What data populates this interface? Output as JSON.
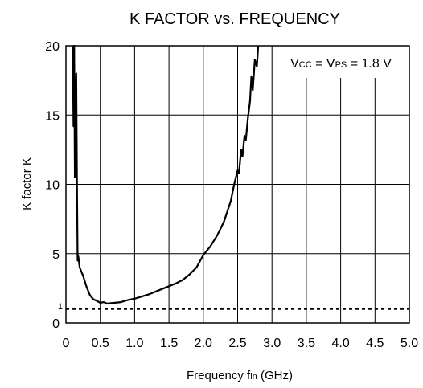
{
  "chart_data": {
    "type": "line",
    "title": "K FACTOR vs. FREQUENCY",
    "xlabel_main": "Frequency  f",
    "xlabel_sub": "in",
    "xlabel_unit": " (GHz)",
    "ylabel": "K factor  K",
    "xlim": [
      0,
      5.0
    ],
    "ylim": [
      0,
      20
    ],
    "x_ticks": [
      {
        "value": 0,
        "label": "0"
      },
      {
        "value": 0.5,
        "label": "0.5"
      },
      {
        "value": 1.0,
        "label": "1.0"
      },
      {
        "value": 1.5,
        "label": "1.5"
      },
      {
        "value": 2.0,
        "label": "2.0"
      },
      {
        "value": 2.5,
        "label": "2.5"
      },
      {
        "value": 3.0,
        "label": "3.0"
      },
      {
        "value": 3.5,
        "label": "3.5"
      },
      {
        "value": 4.0,
        "label": "4.0"
      },
      {
        "value": 4.5,
        "label": "4.5"
      },
      {
        "value": 5.0,
        "label": "5.0"
      }
    ],
    "y_ticks": [
      {
        "value": 0,
        "label": "0"
      },
      {
        "value": 1,
        "label": "1"
      },
      {
        "value": 5,
        "label": "5"
      },
      {
        "value": 10,
        "label": "10"
      },
      {
        "value": 15,
        "label": "15"
      },
      {
        "value": 20,
        "label": "20"
      }
    ],
    "grid": true,
    "reference_line": {
      "y": 1,
      "style": "dotted"
    },
    "legend": {
      "position": "top-right",
      "parts": [
        {
          "text": "V",
          "sub": false
        },
        {
          "text": "CC",
          "sub": true
        },
        {
          "text": " = V",
          "sub": false
        },
        {
          "text": "PS",
          "sub": true
        },
        {
          "text": " = 1.8 V",
          "sub": false
        }
      ]
    },
    "series": [
      {
        "values": [
          [
            0.1,
            20.0
          ],
          [
            0.11,
            14.2
          ],
          [
            0.12,
            20.0
          ],
          [
            0.13,
            10.5
          ],
          [
            0.14,
            16.0
          ],
          [
            0.15,
            18.0
          ],
          [
            0.16,
            10.0
          ],
          [
            0.17,
            4.5
          ],
          [
            0.18,
            4.8
          ],
          [
            0.2,
            4.0
          ],
          [
            0.25,
            3.4
          ],
          [
            0.3,
            2.6
          ],
          [
            0.35,
            2.0
          ],
          [
            0.4,
            1.7
          ],
          [
            0.45,
            1.6
          ],
          [
            0.5,
            1.45
          ],
          [
            0.55,
            1.5
          ],
          [
            0.6,
            1.4
          ],
          [
            0.7,
            1.45
          ],
          [
            0.8,
            1.5
          ],
          [
            0.9,
            1.65
          ],
          [
            1.0,
            1.75
          ],
          [
            1.1,
            1.9
          ],
          [
            1.2,
            2.05
          ],
          [
            1.3,
            2.25
          ],
          [
            1.4,
            2.45
          ],
          [
            1.5,
            2.65
          ],
          [
            1.6,
            2.85
          ],
          [
            1.7,
            3.1
          ],
          [
            1.8,
            3.5
          ],
          [
            1.9,
            4.0
          ],
          [
            2.0,
            4.9
          ],
          [
            2.1,
            5.5
          ],
          [
            2.2,
            6.3
          ],
          [
            2.3,
            7.3
          ],
          [
            2.4,
            8.8
          ],
          [
            2.45,
            10.0
          ],
          [
            2.5,
            11.0
          ],
          [
            2.52,
            10.8
          ],
          [
            2.55,
            12.5
          ],
          [
            2.57,
            12.0
          ],
          [
            2.6,
            13.5
          ],
          [
            2.62,
            13.2
          ],
          [
            2.65,
            14.8
          ],
          [
            2.68,
            16.0
          ],
          [
            2.7,
            17.8
          ],
          [
            2.72,
            16.8
          ],
          [
            2.75,
            19.0
          ],
          [
            2.78,
            18.5
          ],
          [
            2.8,
            20.0
          ]
        ]
      }
    ]
  }
}
